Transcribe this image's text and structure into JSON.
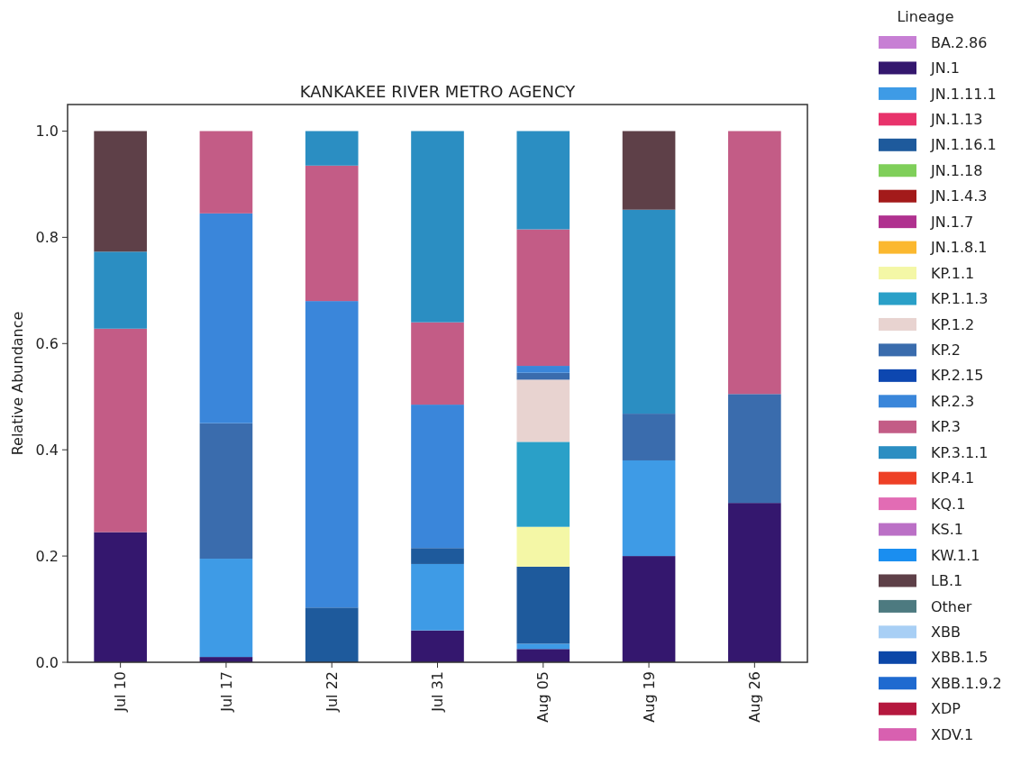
{
  "chart_data": {
    "type": "bar",
    "stacked": true,
    "title": "KANKAKEE RIVER METRO AGENCY",
    "ylabel": "Relative Abundance",
    "legend_title": "Lineage",
    "legend": "right",
    "grid": false,
    "categories": [
      "Jul 10",
      "Jul 17",
      "Jul 22",
      "Jul 31",
      "Aug 05",
      "Aug 19",
      "Aug 26"
    ],
    "ylim": [
      0,
      1.05
    ],
    "yticks": [
      {
        "value": 0,
        "label": "0.0"
      },
      0.2,
      0.4,
      0.6,
      0.8,
      {
        "value": 1,
        "label": "1.0"
      }
    ],
    "series": [
      {
        "name": "BA.2.86",
        "color": "#c77fd4",
        "values": [
          null,
          null,
          null,
          null,
          null,
          null,
          null
        ]
      },
      {
        "name": "JN.1",
        "color": "#34176e",
        "values": [
          0.245,
          0.01,
          null,
          0.06,
          0.025,
          0.2,
          0.3
        ]
      },
      {
        "name": "JN.1.11.1",
        "color": "#3e9be6",
        "values": [
          null,
          0.185,
          null,
          0.125,
          0.01,
          0.18,
          null
        ]
      },
      {
        "name": "JN.1.13",
        "color": "#e8336b",
        "values": [
          null,
          null,
          null,
          null,
          null,
          null,
          null
        ]
      },
      {
        "name": "JN.1.16.1",
        "color": "#1e5a9c",
        "values": [
          null,
          null,
          0.103,
          0.03,
          0.145,
          null,
          null
        ]
      },
      {
        "name": "JN.1.18",
        "color": "#7fcf5a",
        "values": [
          null,
          null,
          null,
          null,
          null,
          null,
          null
        ]
      },
      {
        "name": "JN.1.4.3",
        "color": "#a31a1a",
        "values": [
          null,
          null,
          null,
          null,
          null,
          null,
          null
        ]
      },
      {
        "name": "JN.1.7",
        "color": "#b0318f",
        "values": [
          null,
          null,
          null,
          null,
          null,
          null,
          null
        ]
      },
      {
        "name": "JN.1.8.1",
        "color": "#fbb82f",
        "values": [
          null,
          null,
          null,
          null,
          null,
          null,
          null
        ]
      },
      {
        "name": "KP.1.1",
        "color": "#f4f7a6",
        "values": [
          null,
          null,
          null,
          null,
          0.075,
          null,
          null
        ]
      },
      {
        "name": "KP.1.1.3",
        "color": "#2aa0c8",
        "values": [
          null,
          null,
          null,
          null,
          0.16,
          null,
          null
        ]
      },
      {
        "name": "KP.1.2",
        "color": "#e8d3d0",
        "values": [
          null,
          null,
          null,
          null,
          0.117,
          null,
          null
        ]
      },
      {
        "name": "KP.2",
        "color": "#3a6cad",
        "values": [
          null,
          0.255,
          null,
          null,
          0.013,
          0.088,
          0.205
        ]
      },
      {
        "name": "KP.2.15",
        "color": "#0d47b0",
        "values": [
          null,
          null,
          null,
          null,
          null,
          null,
          null
        ]
      },
      {
        "name": "KP.2.3",
        "color": "#3a86da",
        "values": [
          null,
          0.395,
          0.577,
          0.27,
          0.013,
          null,
          null
        ]
      },
      {
        "name": "KP.3",
        "color": "#c35c86",
        "values": [
          0.383,
          0.155,
          0.255,
          0.155,
          0.257,
          null,
          0.495
        ]
      },
      {
        "name": "KP.3.1.1",
        "color": "#2b8ec2",
        "values": [
          0.145,
          null,
          0.065,
          0.36,
          0.185,
          0.384,
          null
        ]
      },
      {
        "name": "KP.4.1",
        "color": "#ee4026",
        "values": [
          null,
          null,
          null,
          null,
          null,
          null,
          null
        ]
      },
      {
        "name": "KQ.1",
        "color": "#e26cb4",
        "values": [
          null,
          null,
          null,
          null,
          null,
          null,
          null
        ]
      },
      {
        "name": "KS.1",
        "color": "#bb70c6",
        "values": [
          null,
          null,
          null,
          null,
          null,
          null,
          null
        ]
      },
      {
        "name": "KW.1.1",
        "color": "#1a8ef0",
        "values": [
          null,
          null,
          null,
          null,
          null,
          null,
          null
        ]
      },
      {
        "name": "LB.1",
        "color": "#5e4048",
        "values": [
          0.227,
          null,
          null,
          null,
          null,
          0.148,
          null
        ]
      },
      {
        "name": "Other",
        "color": "#4d7a80",
        "values": [
          null,
          null,
          null,
          null,
          null,
          null,
          null
        ]
      },
      {
        "name": "XBB",
        "color": "#a8cff5",
        "values": [
          null,
          null,
          null,
          null,
          null,
          null,
          null
        ]
      },
      {
        "name": "XBB.1.5",
        "color": "#0c47a8",
        "values": [
          null,
          null,
          null,
          null,
          null,
          null,
          null
        ]
      },
      {
        "name": "XBB.1.9.2",
        "color": "#1f6ad0",
        "values": [
          null,
          null,
          null,
          null,
          null,
          null,
          null
        ]
      },
      {
        "name": "XDP",
        "color": "#b5183e",
        "values": [
          null,
          null,
          null,
          null,
          null,
          null,
          null
        ]
      },
      {
        "name": "XDV.1",
        "color": "#d860b0",
        "values": [
          null,
          null,
          null,
          null,
          null,
          null,
          null
        ]
      }
    ]
  }
}
